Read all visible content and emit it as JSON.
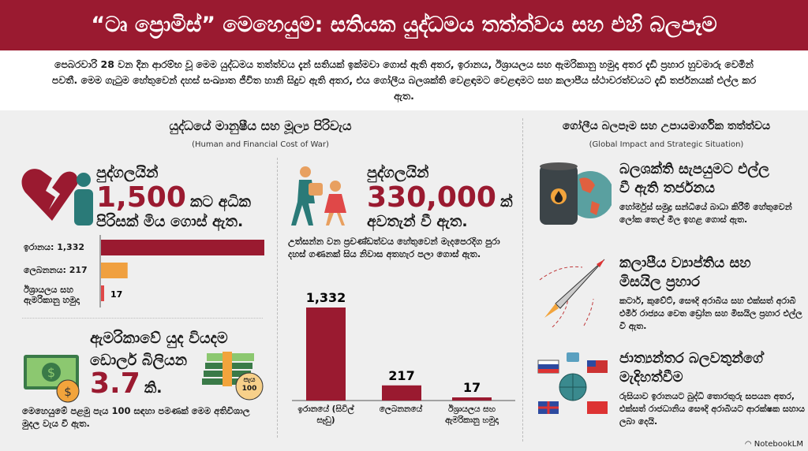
{
  "header": {
    "title": "“ටෘ ප්‍රොමිස්” මෙහෙයුම: සතියක යුද්ධමය තත්ත්වය සහ එහි බලපෑම"
  },
  "intro": "පෙබරවාරි 28 වන දින ආරම්භ වූ මෙම යුද්ධමය තත්ත්වය දැන් සතියක් ඉක්මවා ගොස් ඇති අතර, ඉරානය, ඊශ්‍රායලය සහ ඇමරිකානු හමුදා අතර දැඩි ප්‍රහාර හුවමාරු වෙමින් පවතී. මෙම ගැටුම හේතුවෙන් දහස් සංඛ්‍යාත ජීවිත හානි සිදුව ඇති අතර, එය ගෝලීය බලශක්ති වෙළඳාමට වෙළඳාමට සහ කලාපීය ස්ථාවරත්වයට දැඩි තර්ජනයක් එල්ල කර ඇත.",
  "left": {
    "title": "යුද්ධයේ මානුෂීය සහ මූල්‍ය පිරිවැය",
    "subtitle": "(Human and Financial Cost of War)",
    "deaths": {
      "l1": "පුද්ගලයින්",
      "num": "1,500",
      "l2": "කට අධික",
      "l3": "පිරිසක් මිය ගොස් ඇත."
    },
    "cost": {
      "l1": "ඇමරිකාවේ යුද වියදම",
      "l2": "ඩොලර් බිලියන",
      "num": "3.7",
      "unit": "කි.",
      "badge1": "පැය",
      "badge2": "100",
      "desc": "මෙහෙයුමේ පළමු පැය 100 සඳහා පමණක් මෙම අතිවිශාල මුදල වැය වී ඇත."
    },
    "displaced": {
      "l1": "පුද්ගලයින්",
      "num": "330,000",
      "unit": "ක්",
      "l2": "අවතැන් වී ඇත.",
      "desc": "උත්සන්න වන ප්‍රචණ්ඩත්වය හේතුවෙන් මැදපෙරදිග පුරා දහස් ගණනක් සිය නිවාස අතහැර පලා ගොස් ඇත."
    }
  },
  "chart_data": [
    {
      "type": "bar",
      "orientation": "horizontal",
      "title": "",
      "categories": [
        "ඉරානය: 1,332",
        "ලෙබනනය: 217",
        "ඊශ්‍රායලය සහ ඇමරිකානු හමුදා"
      ],
      "values": [
        1332,
        217,
        17
      ],
      "value_labels": [
        "",
        "",
        "17"
      ],
      "colors": [
        "#9a1a30",
        "#f0a040",
        "#e04848"
      ]
    },
    {
      "type": "bar",
      "orientation": "vertical",
      "title": "",
      "categories": [
        "ඉරානයේ (සිවිල් සෑඩු)",
        "ලෙබනනයේ",
        "ඊශ්‍රායලය සහ ඇමරිකානු හමුදා"
      ],
      "values": [
        1332,
        217,
        17
      ],
      "value_labels": [
        "1,332",
        "217",
        "17"
      ],
      "color": "#9a1a30"
    }
  ],
  "right": {
    "title": "ගෝලීය බලපෑම සහ උපායමාර්ගික තත්ත්වය",
    "subtitle": "(Global Impact and Strategic Situation)",
    "items": [
      {
        "title1": "බලශක්ති සැපයුමට එල්ල",
        "title2": "වී ඇති තර්ජනය",
        "desc": "හෝර්මුස් සමුද්‍ර සන්ධියේ බාධා කිරීම් හේතුවෙන් ලෝක තෙල් මිල ඉහළ ගොස් ඇත."
      },
      {
        "title1": "කලාපීය ව්‍යාප්තිය සහ",
        "title2": "මිසයිල ප්‍රහාර",
        "desc": "කටාර්, කුවේට්, සෞදි අරාබිය සහ එක්සත් අරාබි එමීර් රාජ්‍යය වෙත ඩ්‍රෝන සහ මිසයිල ප්‍රහාර එල්ල වී ඇත."
      },
      {
        "title1": "ජාත්‍යන්තර බලවතුන්ගේ",
        "title2": "මැදිහත්වීම",
        "desc": "රුසියාව ඉරානයට බුද්ධි තොරතුරු සපයන අතර, එක්සත් රාජධානිය සෞදි අරාබියට ආරක්ෂක සහාය ලබා දෙයි."
      }
    ]
  },
  "footer": {
    "brand": "NotebookLM"
  },
  "colors": {
    "accent": "#9a1a30",
    "orange": "#f0a040"
  }
}
